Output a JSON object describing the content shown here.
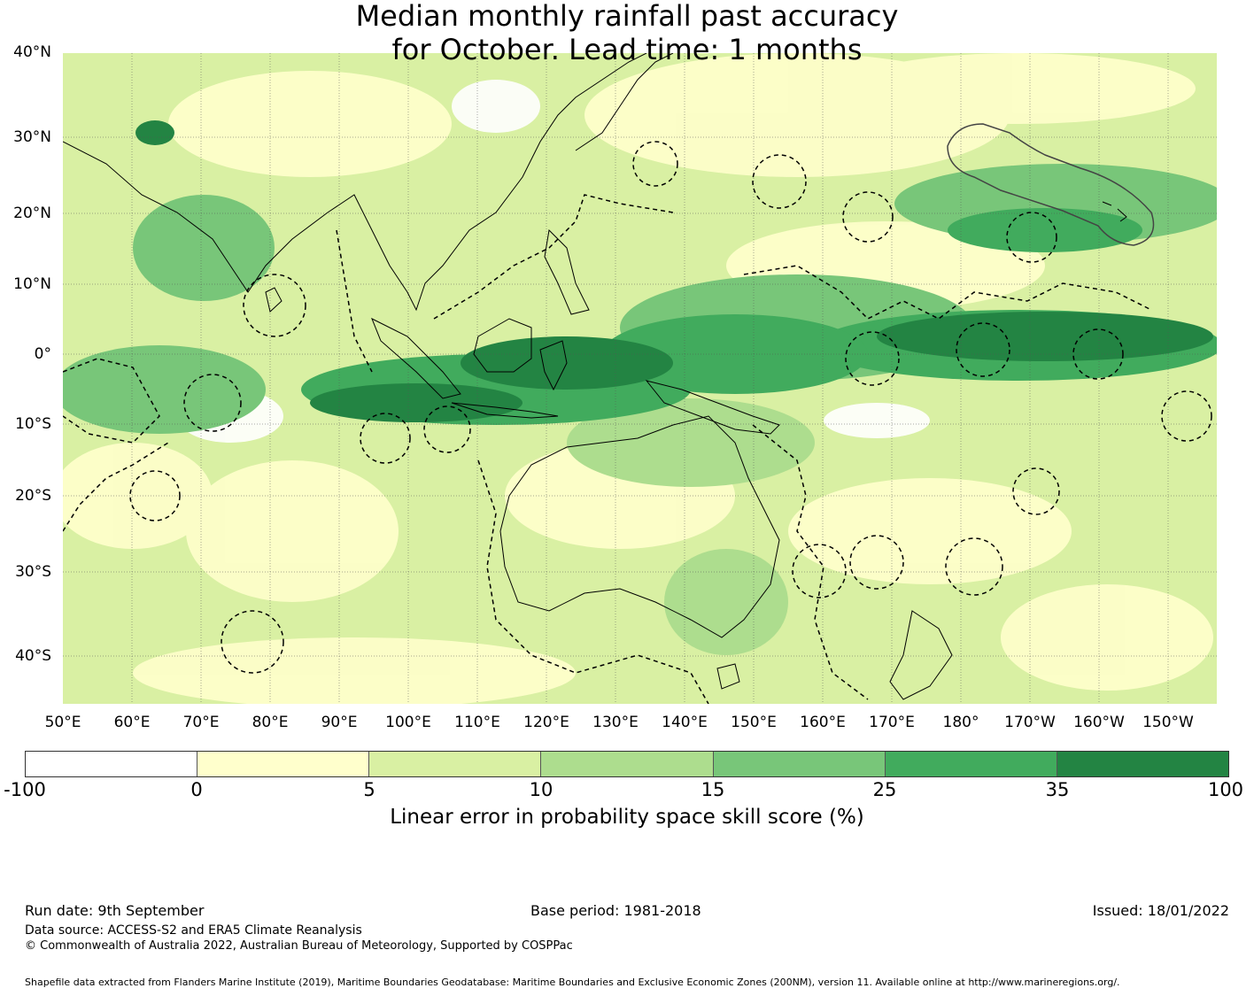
{
  "title_line1": "Median monthly rainfall past accuracy",
  "title_line2": "for October. Lead time: 1 months",
  "lat_labels": [
    "40°N",
    "30°N",
    "20°N",
    "10°N",
    "0°",
    "10°S",
    "20°S",
    "30°S",
    "40°S"
  ],
  "lon_labels": [
    "50°E",
    "60°E",
    "70°E",
    "80°E",
    "90°E",
    "100°E",
    "110°E",
    "120°E",
    "130°E",
    "140°E",
    "150°E",
    "160°E",
    "170°E",
    "180°",
    "170°W",
    "160°W",
    "150°W"
  ],
  "colorbar": {
    "ticks": [
      "-100",
      "0",
      "5",
      "10",
      "15",
      "25",
      "35",
      "100"
    ],
    "colors": [
      "#ffffff",
      "#ffffcc",
      "#d9f0a3",
      "#addd8e",
      "#78c679",
      "#41ab5d",
      "#238443"
    ],
    "label": "Linear error in probability space skill score (%)"
  },
  "footer": {
    "run_date": "Run date: 9th September",
    "base_period": "Base period: 1981-2018",
    "issued": "Issued: 18/01/2022",
    "data_source": "Data source: ACCESS-S2 and ERA5 Climate Reanalysis",
    "copyright": "© Commonwealth of Australia 2022, Australian Bureau of Meteorology, Supported by COSPPac",
    "shapefile": "Shapefile data extracted from Flanders Marine Institute (2019), Maritime Boundaries Geodatabase: Maritime Boundaries and Exclusive Economic Zones (200NM), version 11. Available online at http://www.marineregions.org/."
  }
}
